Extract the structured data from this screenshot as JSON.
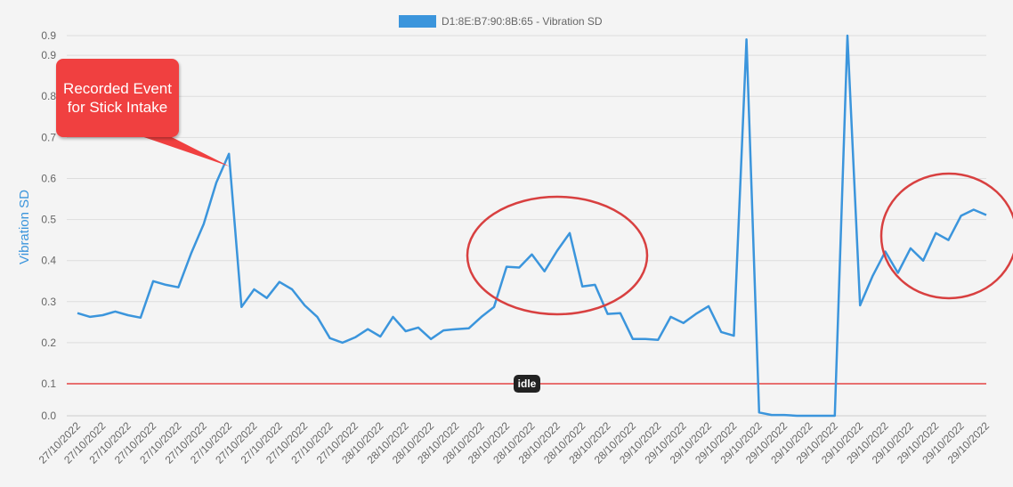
{
  "chart_data": {
    "type": "line",
    "legend": "D1:8E:B7:90:8B:65 - Vibration SD",
    "y_label": "Vibration SD",
    "color": "#3b95dc",
    "grid": true,
    "ylim": [
      0.022,
      0.948
    ],
    "yticks": [
      {
        "value": 0.022,
        "label": "0.0"
      },
      0.1,
      0.2,
      0.3,
      0.4,
      0.5,
      0.6,
      0.7,
      0.8,
      0.9,
      {
        "value": 0.948,
        "label": "0.9"
      }
    ],
    "threshold": {
      "value": 0.1,
      "label": "idle",
      "color": "#e02020"
    },
    "callout": "Recorded Event for Stick Intake",
    "categories": [
      "27/10/2022",
      null,
      "27/10/2022",
      null,
      "27/10/2022",
      null,
      "27/10/2022",
      null,
      "27/10/2022",
      null,
      "27/10/2022",
      null,
      "27/10/2022",
      null,
      "27/10/2022",
      null,
      "27/10/2022",
      null,
      "27/10/2022",
      null,
      "27/10/2022",
      null,
      "27/10/2022",
      null,
      "28/10/2022",
      null,
      "28/10/2022",
      null,
      "28/10/2022",
      null,
      "28/10/2022",
      null,
      "28/10/2022",
      null,
      "28/10/2022",
      null,
      "28/10/2022",
      null,
      "28/10/2022",
      null,
      "28/10/2022",
      null,
      "28/10/2022",
      null,
      "28/10/2022",
      null,
      "29/10/2022",
      null,
      "29/10/2022",
      null,
      "29/10/2022",
      null,
      "29/10/2022",
      null,
      "29/10/2022",
      null,
      "29/10/2022",
      null,
      "29/10/2022",
      null,
      "29/10/2022",
      null,
      "29/10/2022",
      null,
      "29/10/2022",
      null,
      "29/10/2022",
      null,
      "29/10/2022",
      null,
      "29/10/2022",
      null,
      "29/10/2022"
    ],
    "values": [
      0.272,
      0.263,
      0.267,
      0.276,
      0.267,
      0.261,
      0.35,
      0.341,
      0.335,
      0.417,
      0.489,
      0.59,
      0.66,
      0.287,
      0.33,
      0.309,
      0.348,
      0.33,
      0.291,
      0.263,
      0.211,
      0.2,
      0.213,
      0.233,
      0.215,
      0.263,
      0.228,
      0.237,
      0.209,
      0.23,
      0.233,
      0.235,
      0.263,
      0.287,
      0.385,
      0.383,
      0.415,
      0.374,
      0.424,
      0.467,
      0.337,
      0.341,
      0.27,
      0.272,
      0.209,
      0.209,
      0.207,
      0.263,
      0.248,
      0.27,
      0.289,
      0.226,
      0.217,
      0.939,
      0.03,
      0.024,
      0.024,
      0.022,
      0.022,
      0.022,
      0.022,
      0.948,
      0.291,
      0.363,
      0.422,
      0.37,
      0.43,
      0.4,
      0.467,
      0.45,
      0.509,
      0.524,
      0.511
    ]
  }
}
